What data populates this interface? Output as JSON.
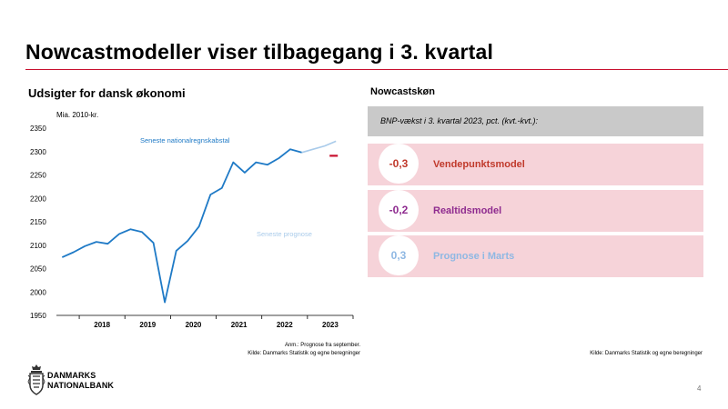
{
  "title": "Nowcastmodeller viser tilbagegang i 3. kvartal",
  "left_heading": "Udsigter for dansk økonomi",
  "right_heading": "Nowcastskøn",
  "chart_data": {
    "type": "line",
    "ylabel": "Mia. 2010-kr.",
    "ylim": [
      1950,
      2350
    ],
    "yticks": [
      "1950",
      "2000",
      "2050",
      "2100",
      "2150",
      "2200",
      "2250",
      "2300",
      "2350"
    ],
    "xlim": [
      2017.5,
      2024.0
    ],
    "xticks": [
      "2018",
      "2019",
      "2020",
      "2021",
      "2022",
      "2023"
    ],
    "grid": false,
    "series": [
      {
        "name": "Seneste nationalregnskabstal",
        "color": "#1f7ac6",
        "x": [
          2017.625,
          2017.875,
          2018.125,
          2018.375,
          2018.625,
          2018.875,
          2019.125,
          2019.375,
          2019.625,
          2019.875,
          2020.125,
          2020.375,
          2020.625,
          2020.875,
          2021.125,
          2021.375,
          2021.625,
          2021.875,
          2022.125,
          2022.375,
          2022.625,
          2022.875,
          2023.125,
          2023.375
        ],
        "y": [
          2074,
          2085,
          2098,
          2107,
          2103,
          2124,
          2134,
          2128,
          2105,
          1978,
          2088,
          2109,
          2140,
          2208,
          2222,
          2277,
          2255,
          2277,
          2272,
          2286,
          2305,
          2298,
          null,
          null
        ]
      },
      {
        "name": "Seneste prognose",
        "color": "#a9cbea",
        "x": [
          2022.875,
          2023.125,
          2023.375,
          2023.625
        ],
        "y": [
          2298,
          2305,
          2312,
          2322
        ]
      }
    ],
    "marker": {
      "x": 2023.625,
      "y": 2291,
      "color": "#c8102e"
    }
  },
  "bnp_label": "BNP-vækst i 3. kvartal 2023, pct. (kvt.-kvt.):",
  "nowcasts": [
    {
      "value": "-0,3",
      "label": "Vendepunktsmodel",
      "color": "#c0392b"
    },
    {
      "value": "-0,2",
      "label": "Realtidsmodel",
      "color": "#8e2b8f"
    },
    {
      "value": "0,3",
      "label": "Prognose i Marts",
      "color": "#8fb8e3"
    }
  ],
  "notes": {
    "left_line1": "Anm.: Prognose fra september.",
    "left_line2": "Kilde: Danmarks Statistik og egne beregninger",
    "right": "Kilde: Danmarks Statistik og egne beregninger"
  },
  "logo": {
    "line1": "DANMARKS",
    "line2": "NATIONALBANK"
  },
  "page_number": "4"
}
